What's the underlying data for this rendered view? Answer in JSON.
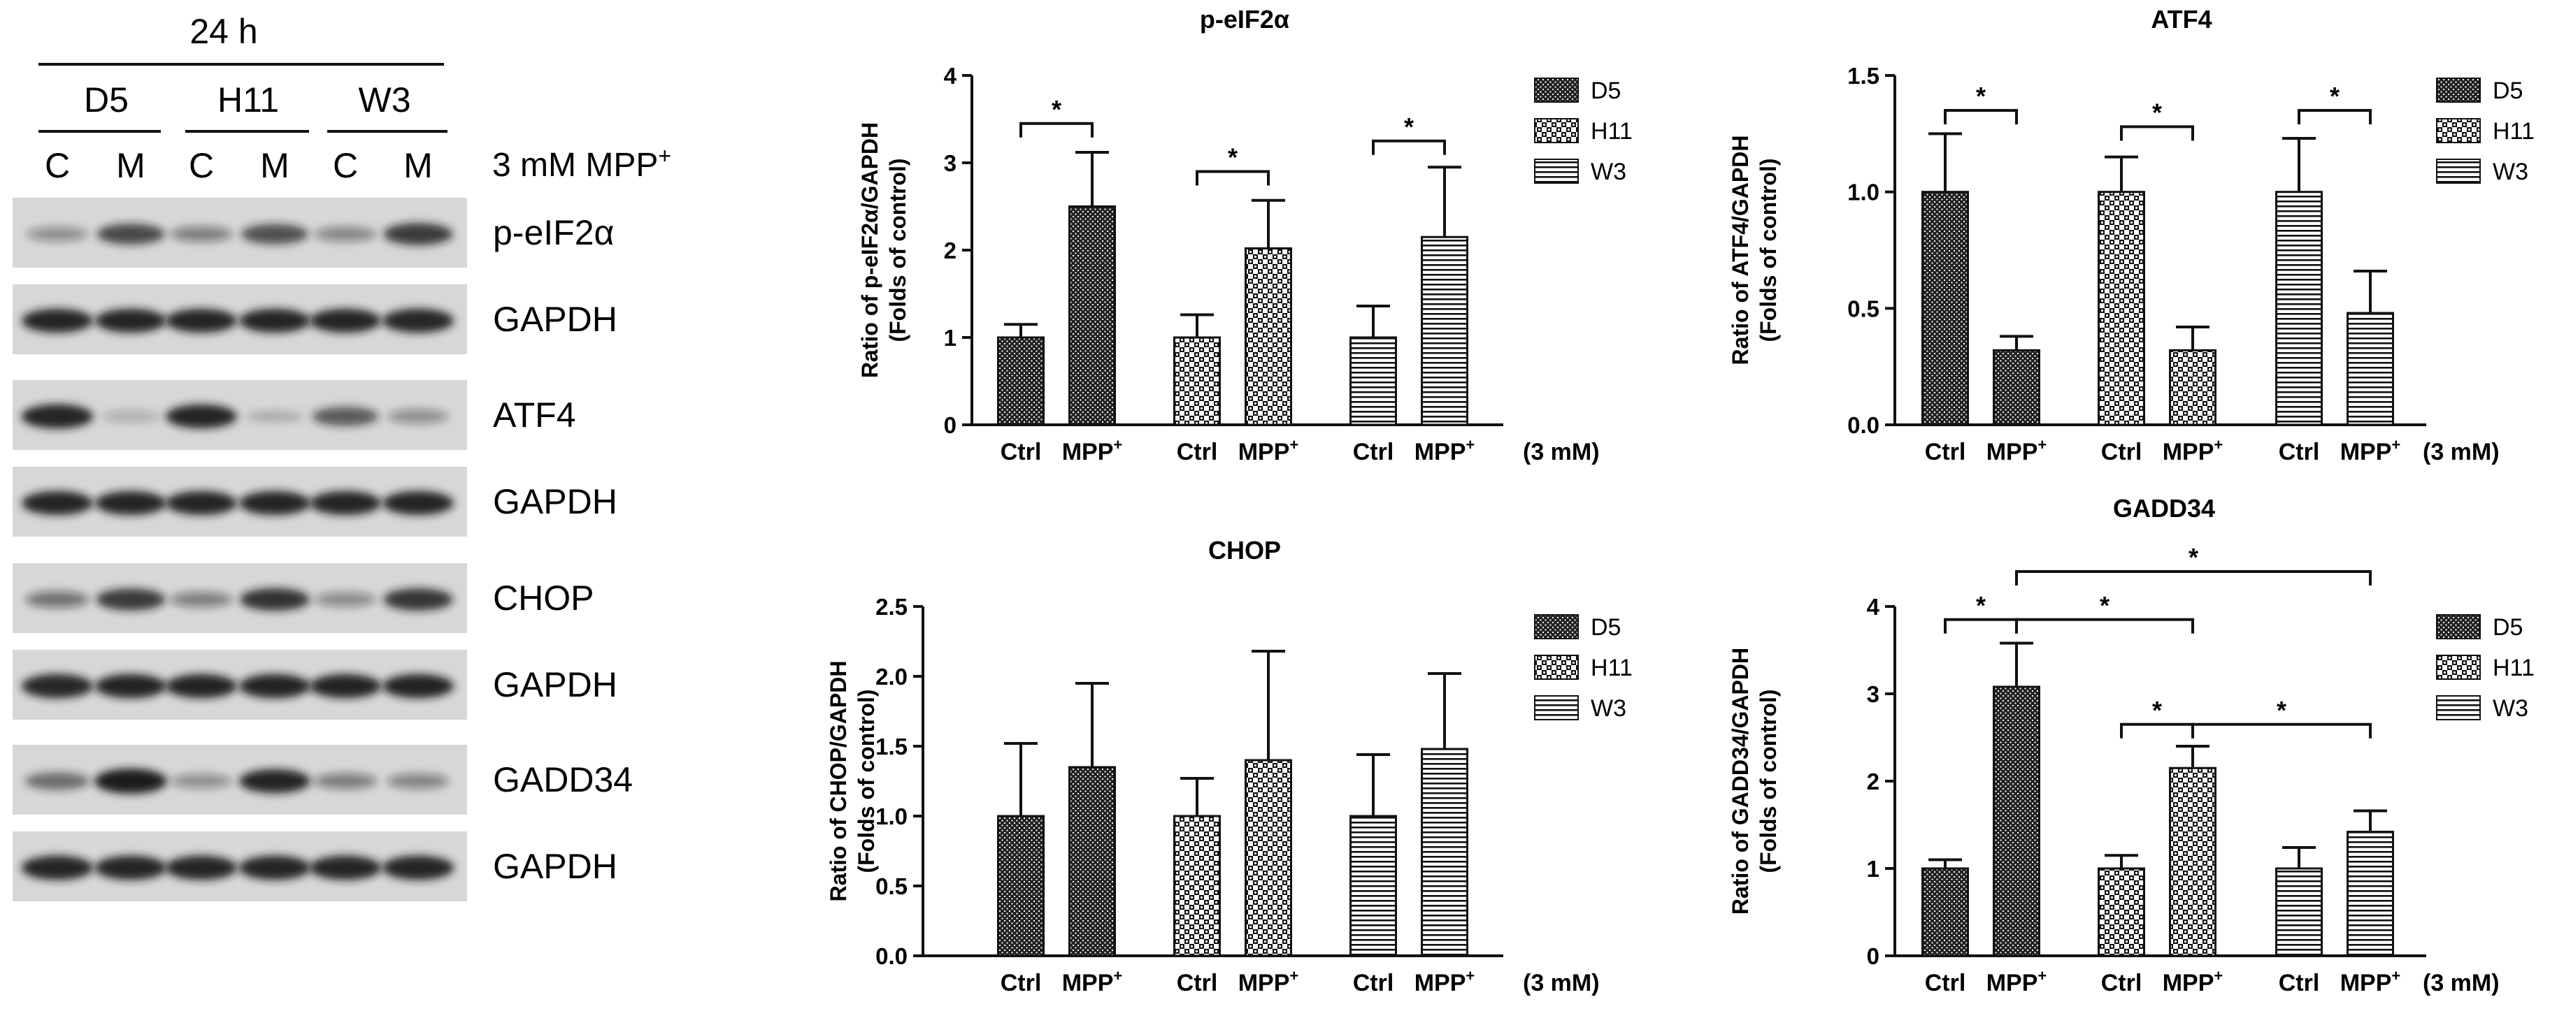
{
  "colors": {
    "ink": "#111111",
    "blot_bg": "#d7d7d7",
    "band": "#1a1a1a"
  },
  "blot": {
    "time": "24 h",
    "lines": [
      "D5",
      "H11",
      "W3"
    ],
    "lanes": [
      "C",
      "M",
      "C",
      "M",
      "C",
      "M"
    ],
    "treatment_base": "3 mM MPP",
    "treatment_sup": "+",
    "rows": [
      {
        "label": "p-eIF2α",
        "intensity": [
          0.3,
          0.72,
          0.38,
          0.68,
          0.34,
          0.8
        ]
      },
      {
        "label": "GAPDH",
        "intensity": [
          0.92,
          0.92,
          0.92,
          0.92,
          0.92,
          0.94
        ]
      },
      {
        "label": "ATF4",
        "intensity": [
          0.95,
          0.12,
          0.92,
          0.1,
          0.62,
          0.3
        ]
      },
      {
        "label": "GAPDH",
        "intensity": [
          0.92,
          0.92,
          0.92,
          0.92,
          0.92,
          0.92
        ]
      },
      {
        "label": "CHOP",
        "intensity": [
          0.45,
          0.8,
          0.38,
          0.84,
          0.32,
          0.82
        ]
      },
      {
        "label": "GAPDH",
        "intensity": [
          0.94,
          0.93,
          0.93,
          0.93,
          0.93,
          0.93
        ]
      },
      {
        "label": "GADD34",
        "intensity": [
          0.52,
          1.0,
          0.3,
          0.92,
          0.4,
          0.36
        ]
      },
      {
        "label": "GAPDH",
        "intensity": [
          0.95,
          0.95,
          0.95,
          0.95,
          0.95,
          0.95
        ]
      }
    ]
  },
  "chart_data": [
    {
      "type": "bar",
      "title": "p-eIF2α",
      "ylabel_lines": [
        "Ratio of p-eIF2α/GAPDH",
        "(Folds of control)"
      ],
      "ylim": [
        0,
        4
      ],
      "yticks": [
        "0",
        "1",
        "2",
        "3",
        "4"
      ],
      "tick_values": [
        0,
        1,
        2,
        3,
        4
      ],
      "x_tick_base": [
        "Ctrl",
        "MPP"
      ],
      "x_tick_sup": [
        "",
        "+"
      ],
      "x_note": "(3 mM)",
      "legend": [
        "D5",
        "H11",
        "W3"
      ],
      "groups": [
        {
          "series": "D5",
          "values": [
            1.0,
            2.5
          ],
          "errors": [
            0.15,
            0.62
          ]
        },
        {
          "series": "H11",
          "values": [
            1.0,
            2.02
          ],
          "errors": [
            0.26,
            0.55
          ]
        },
        {
          "series": "W3",
          "values": [
            1.0,
            2.15
          ],
          "errors": [
            0.36,
            0.8
          ]
        }
      ],
      "significance": [
        {
          "from": [
            0,
            0
          ],
          "to": [
            0,
            1
          ],
          "y": 3.45,
          "mark": "*"
        },
        {
          "from": [
            1,
            0
          ],
          "to": [
            1,
            1
          ],
          "y": 2.9,
          "mark": "*"
        },
        {
          "from": [
            2,
            0
          ],
          "to": [
            2,
            1
          ],
          "y": 3.25,
          "mark": "*"
        }
      ]
    },
    {
      "type": "bar",
      "title": "ATF4",
      "ylabel_lines": [
        "Ratio of ATF4/GAPDH",
        "(Folds of control)"
      ],
      "ylim": [
        0,
        1.5
      ],
      "yticks": [
        "0.0",
        "0.5",
        "1.0",
        "1.5"
      ],
      "tick_values": [
        0,
        0.5,
        1.0,
        1.5
      ],
      "x_tick_base": [
        "Ctrl",
        "MPP"
      ],
      "x_tick_sup": [
        "",
        "+"
      ],
      "x_note": "(3 mM)",
      "legend": [
        "D5",
        "H11",
        "W3"
      ],
      "groups": [
        {
          "series": "D5",
          "values": [
            1.0,
            0.32
          ],
          "errors": [
            0.25,
            0.06
          ]
        },
        {
          "series": "H11",
          "values": [
            1.0,
            0.32
          ],
          "errors": [
            0.15,
            0.1
          ]
        },
        {
          "series": "W3",
          "values": [
            1.0,
            0.48
          ],
          "errors": [
            0.23,
            0.18
          ]
        }
      ],
      "significance": [
        {
          "from": [
            0,
            0
          ],
          "to": [
            0,
            1
          ],
          "y": 1.35,
          "mark": "*"
        },
        {
          "from": [
            1,
            0
          ],
          "to": [
            1,
            1
          ],
          "y": 1.28,
          "mark": "*"
        },
        {
          "from": [
            2,
            0
          ],
          "to": [
            2,
            1
          ],
          "y": 1.35,
          "mark": "*"
        }
      ]
    },
    {
      "type": "bar",
      "title": "CHOP",
      "ylabel_lines": [
        "Ratio of CHOP/GAPDH",
        "(Folds of control)"
      ],
      "ylim": [
        0,
        2.5
      ],
      "yticks": [
        "0.0",
        "0.5",
        "1.0",
        "1.5",
        "2.0",
        "2.5"
      ],
      "tick_values": [
        0,
        0.5,
        1.0,
        1.5,
        2.0,
        2.5
      ],
      "x_tick_base": [
        "Ctrl",
        "MPP"
      ],
      "x_tick_sup": [
        "",
        "+"
      ],
      "x_note": "(3 mM)",
      "legend": [
        "D5",
        "H11",
        "W3"
      ],
      "groups": [
        {
          "series": "D5",
          "values": [
            1.0,
            1.35
          ],
          "errors": [
            0.52,
            0.6
          ]
        },
        {
          "series": "H11",
          "values": [
            1.0,
            1.4
          ],
          "errors": [
            0.27,
            0.78
          ]
        },
        {
          "series": "W3",
          "values": [
            1.0,
            1.48
          ],
          "errors": [
            0.44,
            0.54
          ]
        }
      ],
      "significance": []
    },
    {
      "type": "bar",
      "title": "GADD34",
      "ylabel_lines": [
        "Ratio of GADD34/GAPDH",
        "(Folds of control)"
      ],
      "ylim": [
        0,
        4
      ],
      "yticks": [
        "0",
        "1",
        "2",
        "3",
        "4"
      ],
      "tick_values": [
        0,
        1,
        2,
        3,
        4
      ],
      "x_tick_base": [
        "Ctrl",
        "MPP"
      ],
      "x_tick_sup": [
        "",
        "+"
      ],
      "x_note": "(3 mM)",
      "legend": [
        "D5",
        "H11",
        "W3"
      ],
      "groups": [
        {
          "series": "D5",
          "values": [
            1.0,
            3.08
          ],
          "errors": [
            0.1,
            0.5
          ]
        },
        {
          "series": "H11",
          "values": [
            1.0,
            2.15
          ],
          "errors": [
            0.15,
            0.25
          ]
        },
        {
          "series": "W3",
          "values": [
            1.0,
            1.42
          ],
          "errors": [
            0.24,
            0.24
          ]
        }
      ],
      "significance": [
        {
          "from": [
            0,
            0
          ],
          "to": [
            0,
            1
          ],
          "y": 3.85,
          "mark": "*"
        },
        {
          "from": [
            0,
            1
          ],
          "to": [
            1,
            1
          ],
          "y": 3.85,
          "mark": "*"
        },
        {
          "from": [
            0,
            1
          ],
          "to": [
            2,
            1
          ],
          "y": 4.4,
          "mark": "*"
        },
        {
          "from": [
            1,
            0
          ],
          "to": [
            1,
            1
          ],
          "y": 2.65,
          "mark": "*"
        },
        {
          "from": [
            1,
            1
          ],
          "to": [
            2,
            1
          ],
          "y": 2.65,
          "mark": "*"
        }
      ]
    }
  ]
}
